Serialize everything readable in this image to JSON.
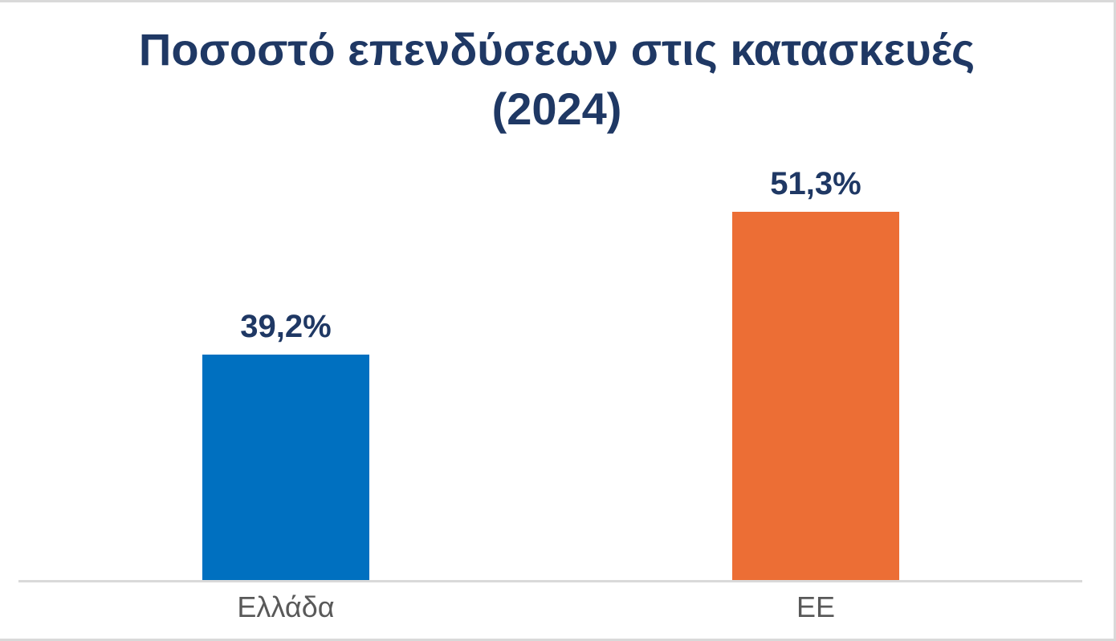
{
  "page": {
    "title_line1": "Ποσοστό επενδύσεων στις κατασκευές",
    "title_line2": "(2024)"
  },
  "colors": {
    "title_text": "#1F3864",
    "value_label_text": "#1F3864",
    "category_label_text": "#595959",
    "axis_line": "#D9D9D9",
    "frame_border": "#D9D9D9",
    "bar_greece": "#0070C0",
    "bar_eu": "#EC6E35"
  },
  "chart_data": {
    "type": "bar",
    "title": "Ποσοστό επενδύσεων στις κατασκευές (2024)",
    "categories": [
      "Ελλάδα",
      "ΕΕ"
    ],
    "values": [
      39.2,
      51.3
    ],
    "value_labels": [
      "39,2%",
      "51,3%"
    ],
    "bar_colors": [
      "#0070C0",
      "#EC6E35"
    ],
    "xlabel": "",
    "ylabel": "",
    "ylim": [
      20,
      60
    ],
    "grid": false,
    "legend": false,
    "value_unit": "%"
  }
}
